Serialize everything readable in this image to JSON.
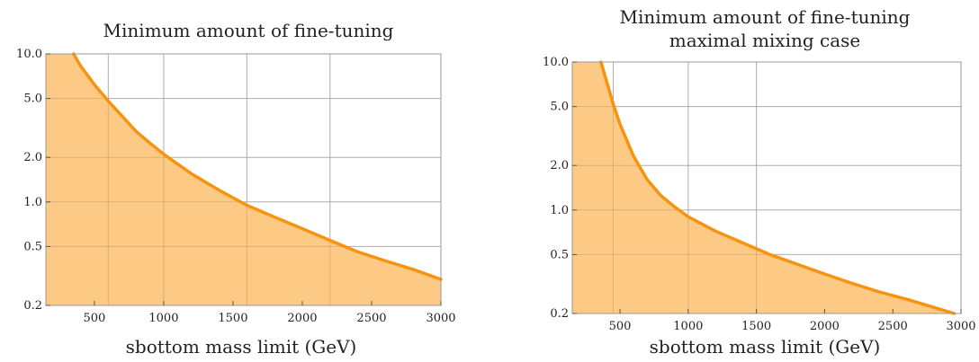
{
  "chart_data": [
    {
      "type": "area",
      "title": "Minimum amount of fine-tuning",
      "subtitle": "",
      "xlabel": "sbottom mass limit (GeV)",
      "ylabel": "",
      "xlim": [
        150,
        3000
      ],
      "ylim": [
        0.2,
        10.0
      ],
      "yscale": "log",
      "grid": true,
      "x_ticks": [
        500,
        1000,
        1500,
        2000,
        2500,
        3000
      ],
      "x_tick_labels": [
        "500",
        "1000",
        "1500",
        "2000",
        "2500",
        "3000"
      ],
      "y_ticks": [
        0.2,
        0.5,
        1.0,
        2.0,
        5.0,
        10.0
      ],
      "y_tick_labels": [
        "0.2",
        "0.5",
        "1.0",
        "2.0",
        "5.0",
        "10.0"
      ],
      "x_grid": [
        600,
        1000,
        1600,
        2200
      ],
      "y_grid": [
        0.5,
        1.0,
        2.0,
        5.0
      ],
      "colors": {
        "curve": "#f7930e",
        "fill": "#fdc77f",
        "grid": "#c8c8c8",
        "frame": "#999999"
      },
      "series": [
        {
          "x": [
            350,
            400,
            500,
            600,
            700,
            800,
            900,
            1000,
            1200,
            1400,
            1600,
            1800,
            2000,
            2200,
            2400,
            2600,
            2800,
            3000
          ],
          "values": [
            10.0,
            8.3,
            6.2,
            4.8,
            3.8,
            3.0,
            2.5,
            2.1,
            1.55,
            1.2,
            0.95,
            0.79,
            0.66,
            0.55,
            0.46,
            0.4,
            0.35,
            0.3
          ]
        }
      ]
    },
    {
      "type": "area",
      "title": "Minimum amount of fine-tuning",
      "subtitle": "maximal mixing case",
      "xlabel": "sbottom mass limit (GeV)",
      "ylabel": "",
      "xlim": [
        150,
        3000
      ],
      "ylim": [
        0.2,
        10.0
      ],
      "yscale": "log",
      "grid": true,
      "x_ticks": [
        500,
        1000,
        1500,
        2000,
        2500,
        3000
      ],
      "x_tick_labels": [
        "500",
        "1000",
        "1500",
        "2000",
        "2500",
        "3000"
      ],
      "y_ticks": [
        0.2,
        0.5,
        1.0,
        2.0,
        5.0,
        10.0
      ],
      "y_tick_labels": [
        "0.2",
        "0.5",
        "1.0",
        "2.0",
        "5.0",
        "10.0"
      ],
      "x_grid": [
        450,
        1000,
        1500
      ],
      "y_grid": [
        0.5,
        1.0,
        2.0,
        5.0
      ],
      "colors": {
        "curve": "#f7930e",
        "fill": "#fdc77f",
        "grid": "#c8c8c8",
        "frame": "#999999"
      },
      "series": [
        {
          "x": [
            360,
            400,
            450,
            500,
            600,
            700,
            800,
            900,
            1000,
            1200,
            1400,
            1600,
            1800,
            2000,
            2200,
            2400,
            2600,
            2800,
            2950
          ],
          "values": [
            10.0,
            7.5,
            5.2,
            3.8,
            2.3,
            1.6,
            1.25,
            1.05,
            0.9,
            0.72,
            0.6,
            0.5,
            0.43,
            0.37,
            0.32,
            0.28,
            0.25,
            0.22,
            0.2
          ]
        }
      ]
    }
  ]
}
